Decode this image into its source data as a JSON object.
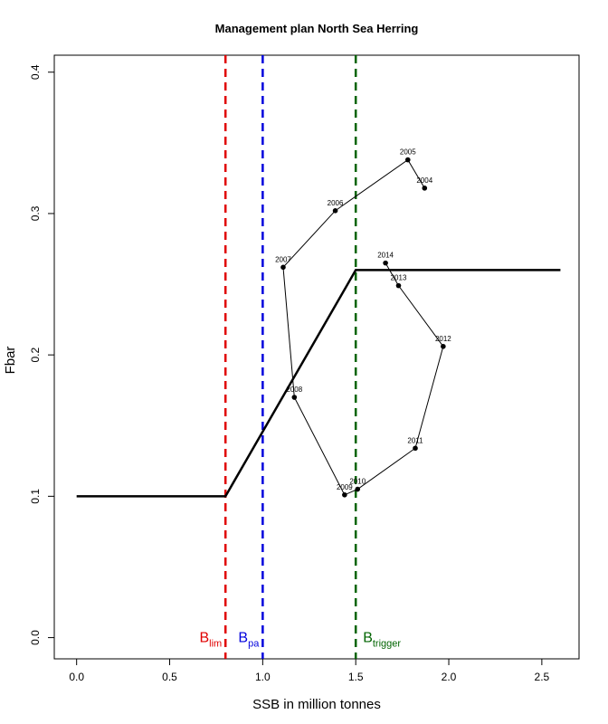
{
  "chart_data": {
    "type": "line",
    "title": "Management plan North Sea Herring",
    "xlabel": "SSB in million tonnes",
    "ylabel": "Fbar",
    "xlim": [
      -0.12,
      2.7
    ],
    "ylim": [
      -0.015,
      0.412
    ],
    "xticks": [
      0.0,
      0.5,
      1.0,
      1.5,
      2.0,
      2.5
    ],
    "xtick_labels": [
      "0.0",
      "0.5",
      "1.0",
      "1.5",
      "2.0",
      "2.5"
    ],
    "yticks": [
      0.0,
      0.1,
      0.2,
      0.3,
      0.4
    ],
    "ytick_labels": [
      "0.0",
      "0.1",
      "0.2",
      "0.3",
      "0.4"
    ],
    "grid": false,
    "harvest_rule": {
      "x": [
        0.0,
        0.8,
        1.5,
        2.6
      ],
      "y": [
        0.1,
        0.1,
        0.26,
        0.26
      ],
      "color": "#000000"
    },
    "reference_lines": [
      {
        "id": "blim",
        "x": 0.8,
        "color": "#e00000",
        "label_main": "B",
        "label_sub": "lim",
        "label_side": "left"
      },
      {
        "id": "bpa",
        "x": 1.0,
        "color": "#0000dd",
        "label_main": "B",
        "label_sub": "pa",
        "label_side": "left"
      },
      {
        "id": "btrigger",
        "x": 1.5,
        "color": "#006400",
        "label_main": "B",
        "label_sub": "trigger",
        "label_side": "right"
      }
    ],
    "trajectory": {
      "points": [
        {
          "year": "2004",
          "x": 1.87,
          "y": 0.318
        },
        {
          "year": "2005",
          "x": 1.78,
          "y": 0.338
        },
        {
          "year": "2006",
          "x": 1.39,
          "y": 0.302
        },
        {
          "year": "2007",
          "x": 1.11,
          "y": 0.262
        },
        {
          "year": "2008",
          "x": 1.17,
          "y": 0.17
        },
        {
          "year": "2009",
          "x": 1.44,
          "y": 0.101
        },
        {
          "year": "2010",
          "x": 1.51,
          "y": 0.105
        },
        {
          "year": "2011",
          "x": 1.82,
          "y": 0.134
        },
        {
          "year": "2012",
          "x": 1.97,
          "y": 0.206
        },
        {
          "year": "2013",
          "x": 1.73,
          "y": 0.249
        },
        {
          "year": "2014",
          "x": 1.66,
          "y": 0.265
        }
      ],
      "color": "#000000"
    }
  }
}
